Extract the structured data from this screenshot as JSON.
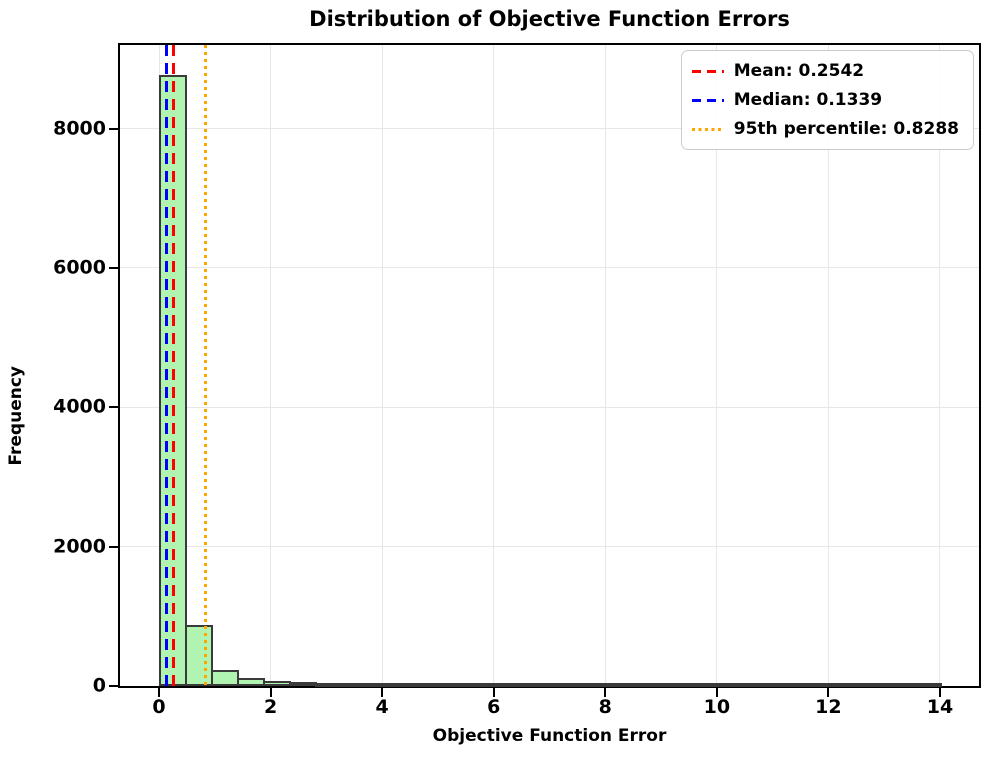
{
  "figure": {
    "title": "Distribution of Objective Function Errors"
  },
  "chart_data": {
    "type": "bar",
    "subtype": "histogram",
    "title": "Distribution of Objective Function Errors",
    "xlabel": "Objective Function Error",
    "ylabel": "Frequency",
    "bin_start": 0,
    "bin_width": 0.46667,
    "counts": [
      8770,
      880,
      230,
      115,
      70,
      52,
      38,
      28,
      20,
      15,
      11,
      8,
      6,
      5,
      4,
      3,
      3,
      2,
      2,
      2,
      1,
      1,
      1,
      1,
      1,
      1,
      0,
      0,
      0,
      1
    ],
    "xlim": [
      -0.7,
      14.7
    ],
    "ylim": [
      0,
      9199
    ],
    "xticks": [
      0,
      2,
      4,
      6,
      8,
      10,
      12,
      14
    ],
    "yticks": [
      0,
      2000,
      4000,
      6000,
      8000
    ],
    "grid": true,
    "grid_color": "#e7e7e7",
    "bar_fill": "#b1f3b1",
    "bar_edge": "#3a3a3a",
    "legend_position": "upper right",
    "lines": [
      {
        "name": "mean",
        "label": "Mean: 0.2542",
        "value": 0.2542,
        "color": "#ff0000",
        "style": "dashed"
      },
      {
        "name": "median",
        "label": "Median: 0.1339",
        "value": 0.1339,
        "color": "#0000ff",
        "style": "dashed"
      },
      {
        "name": "p95",
        "label": "95th percentile: 0.8288",
        "value": 0.8288,
        "color": "#ffa500",
        "style": "dotted"
      }
    ]
  }
}
